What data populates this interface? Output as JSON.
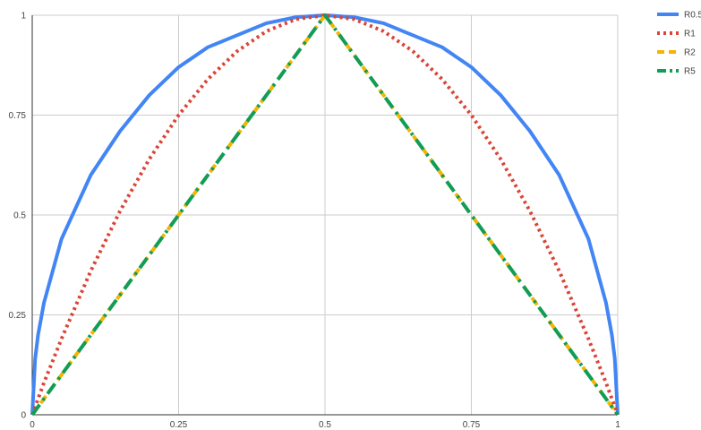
{
  "chart_data": {
    "type": "line",
    "title": "",
    "xlabel": "",
    "ylabel": "",
    "xlim": [
      0,
      1
    ],
    "ylim": [
      0,
      1
    ],
    "x_ticks": [
      "0",
      "0.25",
      "0.5",
      "0.75",
      "1"
    ],
    "y_ticks": [
      "0",
      "0.25",
      "0.5",
      "0.75",
      "1"
    ],
    "grid": true,
    "legend_position": "right",
    "x": [
      0,
      0.005,
      0.01,
      0.02,
      0.05,
      0.1,
      0.15,
      0.2,
      0.25,
      0.3,
      0.35,
      0.4,
      0.45,
      0.5,
      0.55,
      0.6,
      0.65,
      0.7,
      0.75,
      0.8,
      0.85,
      0.9,
      0.95,
      0.98,
      0.99,
      0.995,
      1
    ],
    "series": [
      {
        "name": "R0.5",
        "color": "#4285f4",
        "dash": "solid",
        "values": [
          0,
          0.14,
          0.2,
          0.28,
          0.44,
          0.6,
          0.71,
          0.8,
          0.87,
          0.92,
          0.95,
          0.98,
          0.995,
          1,
          0.995,
          0.98,
          0.95,
          0.92,
          0.87,
          0.8,
          0.71,
          0.6,
          0.44,
          0.28,
          0.2,
          0.14,
          0
        ]
      },
      {
        "name": "R1",
        "color": "#db4437",
        "dash": "dotted",
        "values": [
          0,
          0.02,
          0.04,
          0.08,
          0.19,
          0.36,
          0.51,
          0.64,
          0.75,
          0.84,
          0.91,
          0.96,
          0.99,
          1,
          0.99,
          0.96,
          0.91,
          0.84,
          0.75,
          0.64,
          0.51,
          0.36,
          0.19,
          0.08,
          0.04,
          0.02,
          0
        ]
      },
      {
        "name": "R2",
        "color": "#f4b400",
        "dash": "dashed",
        "values": [
          0,
          0.01,
          0.02,
          0.04,
          0.1,
          0.2,
          0.3,
          0.4,
          0.5,
          0.6,
          0.7,
          0.8,
          0.9,
          1,
          0.9,
          0.8,
          0.7,
          0.6,
          0.5,
          0.4,
          0.3,
          0.2,
          0.1,
          0.04,
          0.02,
          0.01,
          0
        ]
      },
      {
        "name": "R5",
        "color": "#0f9d58",
        "dash": "dashdot",
        "values": [
          0,
          0.01,
          0.02,
          0.04,
          0.1,
          0.2,
          0.3,
          0.4,
          0.5,
          0.6,
          0.7,
          0.8,
          0.9,
          1,
          0.9,
          0.8,
          0.7,
          0.6,
          0.5,
          0.4,
          0.3,
          0.2,
          0.1,
          0.04,
          0.02,
          0.01,
          0
        ]
      }
    ]
  }
}
